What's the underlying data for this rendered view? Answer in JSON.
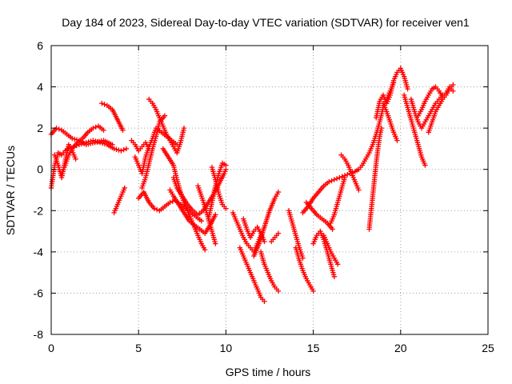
{
  "chart_data": {
    "type": "scatter",
    "title": "Day 184 of 2023, Sidereal Day-to-day VTEC variation (SDTVAR) for receiver ven1",
    "xlabel": "GPS time / hours",
    "ylabel": "SDTVAR / TECUs",
    "xlim": [
      0,
      25
    ],
    "ylim": [
      -8,
      6
    ],
    "x_ticks": [
      0,
      5,
      10,
      15,
      20,
      25
    ],
    "x_tick_labels": [
      "0",
      "5",
      "10",
      "15",
      "20",
      "25"
    ],
    "y_ticks": [
      -8,
      -6,
      -4,
      -2,
      0,
      2,
      4,
      6
    ],
    "y_tick_labels": [
      "-8",
      "-6",
      "-4",
      "-2",
      "0",
      "2",
      "4",
      "6"
    ],
    "grid": true,
    "marker": "+",
    "series_color": "#ff0000",
    "series": [
      {
        "x": [
          0.0,
          0.2,
          0.4,
          0.6,
          0.8,
          1.0,
          1.3,
          1.6,
          2.0,
          2.4,
          2.8,
          3.2,
          3.6,
          4.0,
          4.3
        ],
        "y": [
          -0.9,
          0.2,
          0.8,
          0.7,
          0.9,
          1.0,
          1.1,
          1.2,
          1.3,
          1.4,
          1.3,
          1.2,
          1.0,
          0.9,
          1.0
        ]
      },
      {
        "x": [
          0.0,
          0.3,
          0.6,
          0.9,
          1.2,
          1.6,
          2.0,
          2.5,
          3.0,
          3.5
        ],
        "y": [
          1.7,
          2.0,
          1.9,
          1.7,
          1.5,
          1.4,
          1.2,
          1.3,
          1.4,
          1.2
        ]
      },
      {
        "x": [
          0.2,
          0.4,
          0.6,
          0.8,
          1.0,
          1.2,
          1.4
        ],
        "y": [
          0.7,
          0.2,
          -0.4,
          0.4,
          1.2,
          0.9,
          0.5
        ]
      },
      {
        "x": [
          0.6,
          0.8,
          1.0,
          1.2,
          1.5,
          1.8,
          2.1,
          2.4,
          2.7,
          3.0
        ],
        "y": [
          -0.2,
          0.2,
          0.7,
          1.0,
          1.3,
          1.5,
          1.8,
          2.0,
          2.1,
          1.9
        ]
      },
      {
        "x": [
          2.9,
          3.2,
          3.5,
          3.8,
          4.1
        ],
        "y": [
          3.2,
          3.1,
          2.9,
          2.4,
          1.9
        ]
      },
      {
        "x": [
          3.6,
          3.8,
          4.0,
          4.2
        ],
        "y": [
          -2.1,
          -1.7,
          -1.3,
          -0.9
        ]
      },
      {
        "x": [
          4.6,
          4.8,
          5.0,
          5.2,
          5.4,
          5.6
        ],
        "y": [
          1.4,
          1.2,
          0.9,
          1.1,
          1.3,
          1.0
        ]
      },
      {
        "x": [
          4.8,
          5.0,
          5.2,
          5.4,
          5.6,
          5.8,
          6.0,
          6.3,
          6.6,
          6.9,
          7.2
        ],
        "y": [
          0.6,
          0.2,
          -0.2,
          0.6,
          1.1,
          1.5,
          2.0,
          1.8,
          1.6,
          1.4,
          1.2
        ]
      },
      {
        "x": [
          5.2,
          5.4,
          5.6,
          5.8,
          6.0,
          6.2,
          6.5
        ],
        "y": [
          -0.9,
          -0.4,
          0.3,
          1.0,
          1.6,
          2.3,
          2.6
        ]
      },
      {
        "x": [
          5.0,
          5.3,
          5.6,
          5.9,
          6.2,
          6.5,
          6.8,
          7.1,
          7.4,
          7.7,
          8.0,
          8.3,
          8.6
        ],
        "y": [
          -1.4,
          -1.1,
          -1.6,
          -1.9,
          -2.0,
          -1.8,
          -1.6,
          -1.5,
          -1.7,
          -1.9,
          -2.1,
          -2.3,
          -2.5
        ]
      },
      {
        "x": [
          5.6,
          5.8,
          6.0,
          6.2,
          6.4,
          6.6,
          6.8,
          7.0,
          7.2,
          7.4,
          7.6
        ],
        "y": [
          3.4,
          3.2,
          2.9,
          2.5,
          2.1,
          1.7,
          1.4,
          1.1,
          0.8,
          1.3,
          2.0
        ]
      },
      {
        "x": [
          6.4,
          6.7,
          7.0,
          7.2,
          7.4,
          7.6,
          7.8,
          8.0,
          8.2,
          8.4,
          8.6,
          8.8
        ],
        "y": [
          1.0,
          0.6,
          0.2,
          -0.5,
          -1.1,
          -1.6,
          -2.0,
          -2.4,
          -2.8,
          -3.2,
          -3.6,
          -3.9
        ]
      },
      {
        "x": [
          6.8,
          7.0,
          7.3,
          7.6,
          7.9,
          8.2,
          8.5,
          8.8,
          9.1,
          9.4
        ],
        "y": [
          -1.0,
          -1.3,
          -1.7,
          -2.1,
          -2.5,
          -2.7,
          -2.9,
          -3.1,
          -2.7,
          -2.2
        ]
      },
      {
        "x": [
          7.0,
          7.2,
          7.5,
          7.8,
          8.1,
          8.4,
          8.7,
          9.0,
          9.3,
          9.6,
          9.9,
          10.0
        ],
        "y": [
          -0.4,
          -0.9,
          -1.3,
          -1.7,
          -2.0,
          -2.2,
          -2.0,
          -1.6,
          -1.2,
          -0.7,
          -0.2,
          0.0
        ]
      },
      {
        "x": [
          8.4,
          8.6,
          8.8,
          9.0,
          9.2,
          9.4
        ],
        "y": [
          -0.8,
          -1.3,
          -1.8,
          -2.4,
          -3.0,
          -3.6
        ]
      },
      {
        "x": [
          9.0,
          9.2,
          9.4,
          9.6,
          9.8,
          10.0
        ],
        "y": [
          -2.4,
          -1.6,
          -0.8,
          -0.2,
          0.3,
          0.2
        ]
      },
      {
        "x": [
          9.2,
          9.4,
          9.6,
          9.8,
          10.0
        ],
        "y": [
          0.1,
          -0.5,
          -1.2,
          -1.7,
          -1.9
        ]
      },
      {
        "x": [
          10.4,
          10.6,
          10.8,
          11.0,
          11.2,
          11.4,
          11.6,
          11.8,
          12.0
        ],
        "y": [
          -2.1,
          -2.5,
          -2.9,
          -3.3,
          -3.6,
          -3.8,
          -4.0,
          -3.6,
          -3.2
        ]
      },
      {
        "x": [
          10.8,
          11.0,
          11.2,
          11.4,
          11.6,
          11.8,
          12.0,
          12.2
        ],
        "y": [
          -3.8,
          -4.2,
          -4.6,
          -5.0,
          -5.4,
          -5.8,
          -6.2,
          -6.4
        ]
      },
      {
        "x": [
          11.0,
          11.2,
          11.4,
          11.6,
          11.8,
          12.0,
          12.2
        ],
        "y": [
          -2.4,
          -2.9,
          -3.3,
          -3.0,
          -2.8,
          -3.1,
          -3.5
        ]
      },
      {
        "x": [
          12.0,
          12.2,
          12.4,
          12.6,
          12.8,
          13.0
        ],
        "y": [
          -4.0,
          -4.6,
          -5.0,
          -5.4,
          -5.7,
          -5.9
        ]
      },
      {
        "x": [
          11.6,
          11.9,
          12.2,
          12.5,
          12.8,
          13.0
        ],
        "y": [
          -4.2,
          -3.6,
          -2.8,
          -2.0,
          -1.4,
          -1.1
        ]
      },
      {
        "x": [
          12.6,
          12.8,
          13.0
        ],
        "y": [
          -3.5,
          -3.3,
          -3.1
        ]
      },
      {
        "x": [
          13.6,
          13.8,
          14.0,
          14.2,
          14.4
        ],
        "y": [
          -2.0,
          -2.6,
          -3.2,
          -3.8,
          -4.3
        ]
      },
      {
        "x": [
          14.0,
          14.2,
          14.4,
          14.6,
          14.8,
          15.0
        ],
        "y": [
          -3.8,
          -4.4,
          -4.9,
          -5.3,
          -5.6,
          -5.9
        ]
      },
      {
        "x": [
          14.6,
          14.9,
          15.2,
          15.5,
          15.8,
          16.1
        ],
        "y": [
          -1.6,
          -1.9,
          -2.2,
          -2.4,
          -2.6,
          -2.9
        ]
      },
      {
        "x": [
          14.4,
          14.7,
          15.0,
          15.3,
          15.6,
          15.9,
          16.2,
          16.5,
          16.8,
          17.1,
          17.4,
          17.6
        ],
        "y": [
          -2.1,
          -1.8,
          -1.4,
          -1.1,
          -0.8,
          -0.6,
          -0.5,
          -0.4,
          -0.3,
          -0.2,
          -0.1,
          0.0
        ]
      },
      {
        "x": [
          15.0,
          15.2,
          15.4,
          15.6,
          15.8,
          16.0,
          16.2
        ],
        "y": [
          -3.6,
          -3.2,
          -3.0,
          -3.4,
          -4.0,
          -4.6,
          -5.2
        ]
      },
      {
        "x": [
          15.6,
          15.8,
          16.0,
          16.2,
          16.4
        ],
        "y": [
          -3.2,
          -3.6,
          -4.0,
          -4.3,
          -4.6
        ]
      },
      {
        "x": [
          16.0,
          16.2,
          16.4,
          16.6,
          16.8
        ],
        "y": [
          -2.6,
          -2.2,
          -1.6,
          -1.0,
          -0.4
        ]
      },
      {
        "x": [
          16.6,
          16.8,
          17.0,
          17.2,
          17.4,
          17.6
        ],
        "y": [
          0.7,
          0.5,
          0.2,
          -0.2,
          -0.6,
          -1.0
        ]
      },
      {
        "x": [
          18.2,
          18.3,
          18.4,
          18.5,
          18.6,
          18.7,
          18.8,
          18.9
        ],
        "y": [
          -2.9,
          -2.1,
          -1.3,
          -0.5,
          0.3,
          1.0,
          1.6,
          2.0
        ]
      },
      {
        "x": [
          17.6,
          17.8,
          18.0,
          18.2,
          18.4,
          18.6,
          18.8,
          19.0,
          19.2,
          19.4,
          19.6
        ],
        "y": [
          0.0,
          0.2,
          0.5,
          0.8,
          1.2,
          1.7,
          2.3,
          3.0,
          3.4,
          3.8,
          4.2
        ]
      },
      {
        "x": [
          18.6,
          18.8,
          19.0,
          19.2,
          19.4,
          19.6,
          19.8,
          20.0,
          20.2,
          20.4
        ],
        "y": [
          2.5,
          3.3,
          3.6,
          3.2,
          3.6,
          4.3,
          4.7,
          4.9,
          4.5,
          3.9
        ]
      },
      {
        "x": [
          19.0,
          19.2,
          19.4,
          19.6,
          19.8
        ],
        "y": [
          3.2,
          2.8,
          2.3,
          1.8,
          1.4
        ]
      },
      {
        "x": [
          20.2,
          20.4,
          20.6,
          20.8,
          21.0,
          21.2,
          21.4
        ],
        "y": [
          3.6,
          3.0,
          2.4,
          1.8,
          1.2,
          0.6,
          0.2
        ]
      },
      {
        "x": [
          20.6,
          20.8,
          21.0,
          21.2,
          21.4,
          21.6,
          21.8,
          22.0,
          22.2,
          22.4
        ],
        "y": [
          3.4,
          2.8,
          2.3,
          2.0,
          2.3,
          2.6,
          2.9,
          3.2,
          3.4,
          3.6
        ]
      },
      {
        "x": [
          21.0,
          21.2,
          21.4,
          21.6,
          21.8,
          22.0,
          22.2,
          22.4,
          22.6,
          22.8,
          23.0
        ],
        "y": [
          2.6,
          2.9,
          3.3,
          3.6,
          3.9,
          4.0,
          3.8,
          3.5,
          3.7,
          4.0,
          3.8
        ]
      },
      {
        "x": [
          21.6,
          21.8,
          22.0,
          22.2,
          22.4,
          22.6,
          22.8,
          23.0
        ],
        "y": [
          1.8,
          2.3,
          2.8,
          3.1,
          3.4,
          3.6,
          3.9,
          4.1
        ]
      }
    ]
  }
}
